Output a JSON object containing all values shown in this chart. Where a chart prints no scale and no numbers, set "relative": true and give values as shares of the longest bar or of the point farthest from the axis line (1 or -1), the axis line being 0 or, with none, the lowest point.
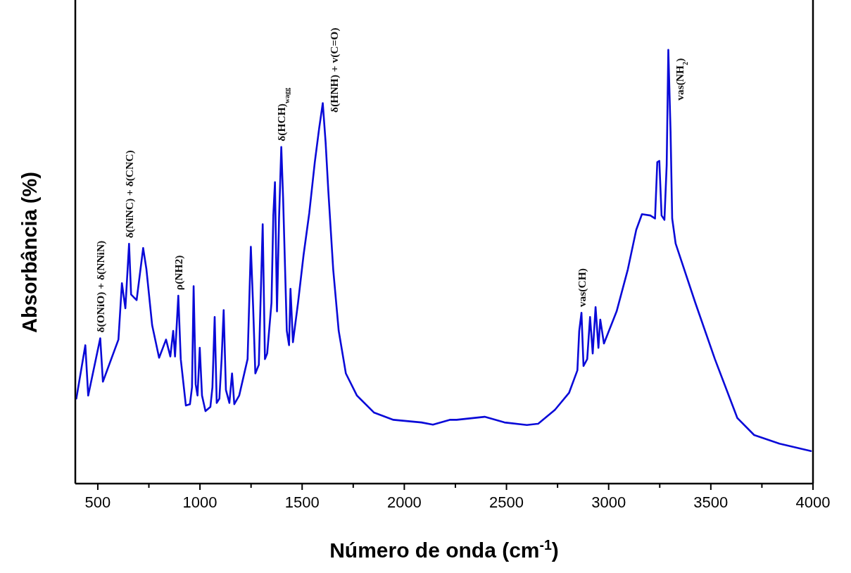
{
  "chart_data": {
    "type": "line",
    "relative": true,
    "xlabel": "Número de onda (cm$^{-1}$)",
    "ylabel": "Absorbância (%)",
    "xlim": [
      390,
      4000
    ],
    "xticks": [
      500,
      {
        "value": 750,
        "label": null
      },
      1000,
      {
        "value": 1250,
        "label": null
      },
      1500,
      {
        "value": 1750,
        "label": null
      },
      2000,
      {
        "value": 2250,
        "label": null
      },
      2500,
      {
        "value": 2750,
        "label": null
      },
      3000,
      {
        "value": 3250,
        "label": null
      },
      3500,
      {
        "value": 3750,
        "label": null
      },
      4000
    ],
    "x": [
      395,
      439,
      453,
      512,
      525,
      601,
      618,
      635,
      653,
      663,
      690,
      722,
      738,
      766,
      800,
      834,
      855,
      869,
      878,
      894,
      906,
      931,
      951,
      961,
      969,
      979,
      988,
      999,
      1010,
      1027,
      1051,
      1061,
      1072,
      1082,
      1095,
      1106,
      1116,
      1127,
      1144,
      1157,
      1168,
      1192,
      1233,
      1249,
      1260,
      1271,
      1288,
      1307,
      1318,
      1329,
      1350,
      1359,
      1367,
      1377,
      1387,
      1398,
      1407,
      1425,
      1436,
      1443,
      1455,
      1480,
      1507,
      1535,
      1562,
      1583,
      1601,
      1615,
      1628,
      1652,
      1679,
      1714,
      1768,
      1851,
      1947,
      2084,
      2140,
      2222,
      2256,
      2393,
      2490,
      2600,
      2655,
      2737,
      2806,
      2847,
      2856,
      2867,
      2877,
      2895,
      2909,
      2922,
      2936,
      2950,
      2959,
      2977,
      3039,
      3094,
      3135,
      3163,
      3204,
      3227,
      3238,
      3248,
      3259,
      3273,
      3284,
      3292,
      3303,
      3311,
      3328,
      3424,
      3520,
      3630,
      3712,
      3836,
      3953,
      3990
    ],
    "series": [
      {
        "color": "#0a0ad8",
        "values": [
          0.196,
          0.319,
          0.203,
          0.335,
          0.235,
          0.332,
          0.462,
          0.404,
          0.553,
          0.436,
          0.423,
          0.543,
          0.494,
          0.365,
          0.29,
          0.332,
          0.293,
          0.352,
          0.293,
          0.433,
          0.287,
          0.18,
          0.183,
          0.222,
          0.455,
          0.229,
          0.203,
          0.313,
          0.203,
          0.167,
          0.177,
          0.222,
          0.384,
          0.186,
          0.196,
          0.287,
          0.4,
          0.216,
          0.186,
          0.254,
          0.183,
          0.203,
          0.287,
          0.546,
          0.41,
          0.254,
          0.274,
          0.598,
          0.287,
          0.3,
          0.417,
          0.618,
          0.695,
          0.397,
          0.611,
          0.776,
          0.656,
          0.352,
          0.319,
          0.449,
          0.326,
          0.417,
          0.527,
          0.624,
          0.741,
          0.818,
          0.877,
          0.786,
          0.676,
          0.494,
          0.352,
          0.254,
          0.203,
          0.164,
          0.147,
          0.141,
          0.136,
          0.147,
          0.147,
          0.154,
          0.141,
          0.135,
          0.138,
          0.17,
          0.209,
          0.261,
          0.352,
          0.394,
          0.271,
          0.287,
          0.384,
          0.3,
          0.407,
          0.313,
          0.378,
          0.323,
          0.397,
          0.494,
          0.585,
          0.621,
          0.618,
          0.611,
          0.741,
          0.744,
          0.618,
          0.608,
          0.734,
          1.0,
          0.812,
          0.611,
          0.553,
          0.417,
          0.287,
          0.151,
          0.112,
          0.092,
          0.079,
          0.075
        ]
      }
    ],
    "annotations": [
      {
        "text": "δ(ONiO) + δ(NNiN)",
        "x": 512,
        "y": 0.335
      },
      {
        "text": "δ(NiNC) + δ(CNC)",
        "x": 653,
        "y": 0.553
      },
      {
        "text": "ρ(NH2)",
        "x": 894,
        "y": 0.433
      },
      {
        "text": "δ(HCH)$_{wagg}$",
        "x": 1398,
        "y": 0.776
      },
      {
        "text": "δ(HNH) + v(C=O)",
        "x": 1601,
        "y": 0.877
      },
      {
        "text": "vas(CH)",
        "x": 2867,
        "y": 0.394
      },
      {
        "text": "vas(NH$_{2}$)",
        "x": 3292,
        "y": 1.0
      }
    ]
  }
}
